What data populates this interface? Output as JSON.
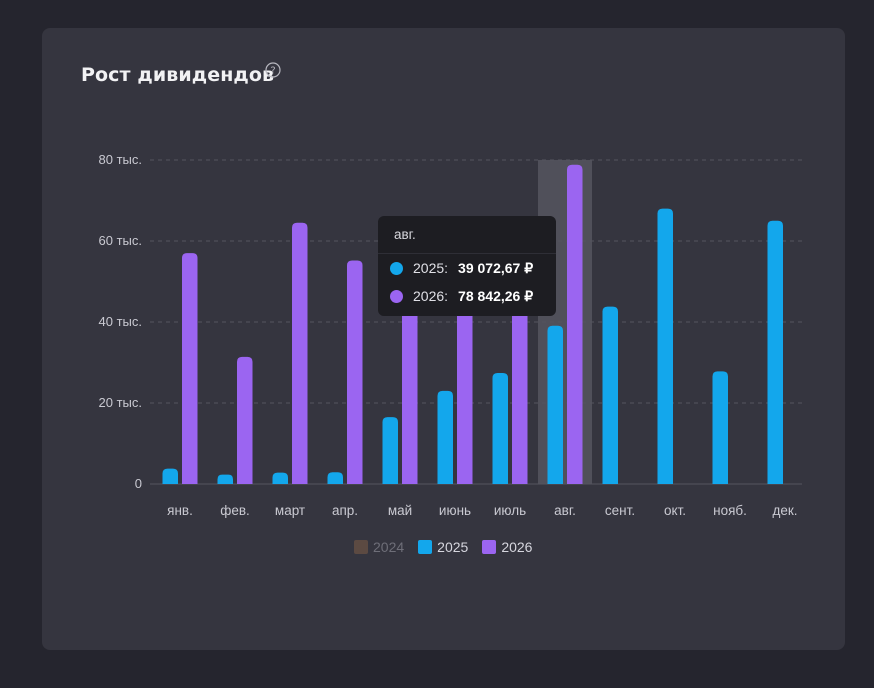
{
  "card": {
    "title": "Рост дивидендов",
    "help_icon": "question-circle-icon"
  },
  "colors": {
    "background": "#25252e",
    "card": "#35353f",
    "series_2024": "#5c4a42",
    "series_2025": "#13a7ec",
    "series_2026": "#9b65f1",
    "highlight": "#5a5a64",
    "grid": "#55555f"
  },
  "tooltip": {
    "month": "авг.",
    "rows": [
      {
        "year": "2025:",
        "value": "39 072,67 ₽",
        "color": "#13a7ec"
      },
      {
        "year": "2026:",
        "value": "78 842,26 ₽",
        "color": "#9b65f1"
      }
    ]
  },
  "chart_data": {
    "type": "bar",
    "title": "Рост дивидендов",
    "categories": [
      "янв.",
      "фев.",
      "март",
      "апр.",
      "май",
      "июнь",
      "июль",
      "авг.",
      "сент.",
      "окт.",
      "нояб.",
      "дек."
    ],
    "y_ticks": [
      "0",
      "20 тыс.",
      "40 тыс.",
      "60 тыс.",
      "80 тыс."
    ],
    "y_tick_values": [
      0,
      20000,
      40000,
      60000,
      80000
    ],
    "ylim": [
      0,
      80000
    ],
    "grid": true,
    "legend_position": "bottom-center",
    "highlighted_category": "авг.",
    "series": [
      {
        "name": "2024",
        "color": "#5c4a42",
        "disabled": true,
        "values": [
          0,
          0,
          0,
          0,
          0,
          0,
          0,
          0,
          0,
          0,
          0,
          0
        ]
      },
      {
        "name": "2025",
        "color": "#13a7ec",
        "values": [
          3800,
          2300,
          2800,
          2900,
          16500,
          23000,
          27400,
          39072.67,
          43800,
          68000,
          27800,
          65000
        ]
      },
      {
        "name": "2026",
        "color": "#9b65f1",
        "values": [
          57000,
          31400,
          64500,
          55200,
          52000,
          63000,
          61500,
          78842.26,
          0,
          0,
          0,
          0
        ]
      }
    ]
  }
}
